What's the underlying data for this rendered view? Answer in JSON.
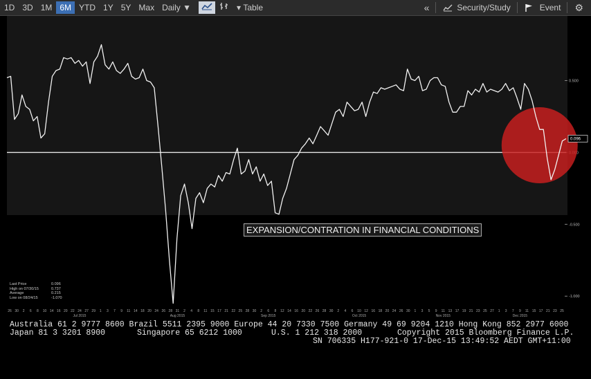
{
  "toolbar": {
    "periods": [
      "1D",
      "3D",
      "1M",
      "6M",
      "YTD",
      "1Y",
      "5Y",
      "Max"
    ],
    "active_period": "6M",
    "frequency": "Daily ▼",
    "table_label": "Table",
    "security_study_label": "Security/Study",
    "event_label": "Event"
  },
  "chart_data": {
    "type": "line",
    "title": "",
    "annotation": "EXPANSION/CONTRATION IN FINANCIAL CONDITIONS",
    "ylim": [
      -1.1,
      0.95
    ],
    "y_ticks": [
      0.5,
      0.0,
      -0.5,
      -1.0
    ],
    "y_tick_labels": [
      "0.500",
      "0.000",
      "-0.500",
      "-1.000"
    ],
    "last_value_label": "0.096",
    "grid": false,
    "x_tick_labels": [
      "26",
      "30",
      "2",
      "6",
      "8",
      "10",
      "14",
      "16",
      "20",
      "22",
      "24",
      "27",
      "29",
      "1",
      "3",
      "7",
      "9",
      "11",
      "14",
      "18",
      "20",
      "24",
      "26",
      "28",
      "31",
      "2",
      "4",
      "8",
      "11",
      "15",
      "17",
      "21",
      "22",
      "25",
      "28",
      "30",
      "2",
      "6",
      "8",
      "12",
      "14",
      "16",
      "20",
      "22",
      "26",
      "28",
      "30",
      "2",
      "4",
      "6",
      "10",
      "12",
      "16",
      "18",
      "20",
      "24",
      "26",
      "30",
      "1",
      "3",
      "5",
      "9",
      "11",
      "13",
      "17",
      "19",
      "21",
      "23",
      "25",
      "27",
      "1",
      "3",
      "7",
      "9",
      "11",
      "15",
      "17",
      "21",
      "23",
      "25"
    ],
    "month_labels": [
      {
        "label": "Jul 2015",
        "index": 10
      },
      {
        "label": "Aug 2015",
        "index": 24
      },
      {
        "label": "Sep 2015",
        "index": 37
      },
      {
        "label": "Oct 2015",
        "index": 50
      },
      {
        "label": "Nov 2015",
        "index": 62
      },
      {
        "label": "Dec 2015",
        "index": 73
      }
    ],
    "series": [
      {
        "name": "",
        "values": [
          0.52,
          0.53,
          0.23,
          0.27,
          0.4,
          0.32,
          0.3,
          0.22,
          0.25,
          0.1,
          0.13,
          0.35,
          0.53,
          0.57,
          0.58,
          0.66,
          0.65,
          0.66,
          0.62,
          0.64,
          0.6,
          0.63,
          0.48,
          0.63,
          0.67,
          0.75,
          0.61,
          0.58,
          0.63,
          0.57,
          0.55,
          0.58,
          0.62,
          0.53,
          0.51,
          0.52,
          0.58,
          0.5,
          0.49,
          0.45,
          0.18,
          -0.1,
          -0.4,
          -0.75,
          -1.05,
          -0.6,
          -0.3,
          -0.22,
          -0.35,
          -0.53,
          -0.32,
          -0.28,
          -0.35,
          -0.25,
          -0.22,
          -0.24,
          -0.16,
          -0.2,
          -0.14,
          -0.15,
          -0.05,
          0.03,
          -0.15,
          -0.13,
          -0.05,
          -0.15,
          -0.1,
          -0.2,
          -0.15,
          -0.23,
          -0.2,
          -0.42,
          -0.43,
          -0.32,
          -0.25,
          -0.15,
          -0.05,
          -0.02,
          0.03,
          0.06,
          0.1,
          0.06,
          0.12,
          0.18,
          0.15,
          0.12,
          0.2,
          0.28,
          0.3,
          0.25,
          0.35,
          0.32,
          0.29,
          0.3,
          0.35,
          0.25,
          0.35,
          0.42,
          0.41,
          0.45,
          0.44,
          0.45,
          0.46,
          0.47,
          0.44,
          0.43,
          0.58,
          0.51,
          0.5,
          0.53,
          0.43,
          0.44,
          0.5,
          0.52,
          0.52,
          0.47,
          0.46,
          0.35,
          0.28,
          0.28,
          0.32,
          0.32,
          0.43,
          0.4,
          0.44,
          0.42,
          0.48,
          0.42,
          0.44,
          0.43,
          0.42,
          0.44,
          0.48,
          0.43,
          0.45,
          0.38,
          0.3,
          0.48,
          0.44,
          0.36,
          0.25,
          0.16,
          0.16,
          -0.04,
          -0.19,
          -0.12,
          -0.02,
          0.08,
          0.096
        ]
      }
    ],
    "legend": [
      {
        "label": "Last Price",
        "value": "0.096"
      },
      {
        "label": "High on 07/30/15",
        "value": "0.737"
      },
      {
        "label": "Average",
        "value": "0.215"
      },
      {
        "label": "Low on 08/24/15",
        "value": "-1.070"
      }
    ],
    "highlight_circle": {
      "x_index": 141,
      "y_value": 0.05,
      "color": "#cc1f1f"
    }
  },
  "footer": {
    "line1": "Australia 61 2 9777 8600 Brazil 5511 2395 9000 Europe 44 20 7330 7500 Germany 49 69 9204 1210 Hong Kong 852 2977 6000",
    "line2a": "Japan 81 3 3201 8900",
    "line2b": "Singapore 65 6212 1000",
    "line2c": "U.S. 1 212 318 2000",
    "line2d": "Copyright 2015 Bloomberg Finance L.P.",
    "line3": "SN 706335 H177-921-0 17-Dec-15 13:49:52 AEDT GMT+11:00"
  }
}
